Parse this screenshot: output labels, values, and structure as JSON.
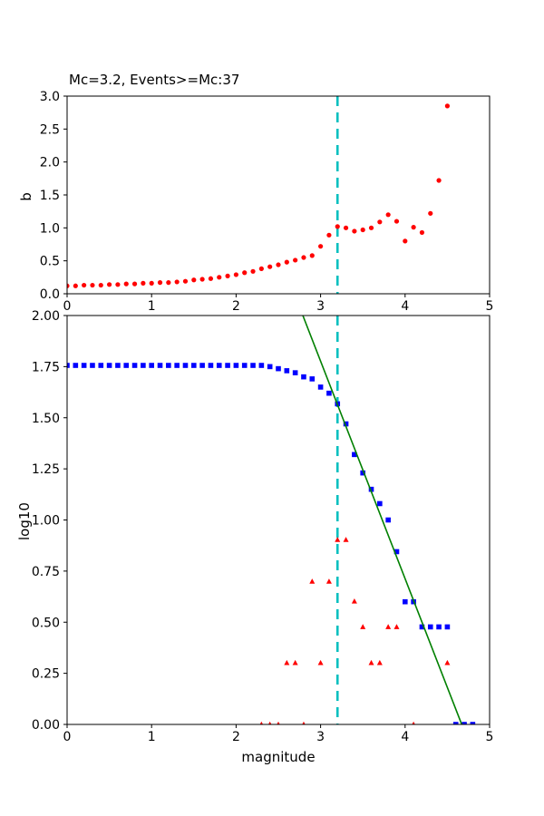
{
  "figure": {
    "background": "#ffffff",
    "title": "Mc=3.2, Events>=Mc:37"
  },
  "chart_data": [
    {
      "id": "b-value-stability",
      "type": "scatter",
      "title": "Mc=3.2, Events>=Mc:37",
      "xlabel": "",
      "ylabel": "b",
      "xlim": [
        0,
        5
      ],
      "ylim": [
        0,
        3
      ],
      "xticks": [
        0,
        1,
        2,
        3,
        4,
        5
      ],
      "xtick_labels": [
        "0",
        "1",
        "2",
        "3",
        "4",
        "5"
      ],
      "yticks": [
        0.0,
        0.5,
        1.0,
        1.5,
        2.0,
        2.5,
        3.0
      ],
      "ytick_labels": [
        "0.0",
        "0.5",
        "1.0",
        "1.5",
        "2.0",
        "2.5",
        "3.0"
      ],
      "grid": false,
      "legend": "none",
      "vline": {
        "x": 3.2,
        "color": "#00bfbf",
        "style": "dashed",
        "width": 2.6
      },
      "series": [
        {
          "name": "b-value-vs-cutoff-magnitude",
          "marker": "circle",
          "color": "#ff0000",
          "x": [
            0.0,
            0.1,
            0.2,
            0.3,
            0.4,
            0.5,
            0.6,
            0.7,
            0.8,
            0.9,
            1.0,
            1.1,
            1.2,
            1.3,
            1.4,
            1.5,
            1.6,
            1.7,
            1.8,
            1.9,
            2.0,
            2.1,
            2.2,
            2.3,
            2.4,
            2.5,
            2.6,
            2.7,
            2.8,
            2.9,
            3.0,
            3.1,
            3.2,
            3.3,
            3.4,
            3.5,
            3.6,
            3.7,
            3.8,
            3.9,
            4.0,
            4.1,
            4.2,
            4.3,
            4.4,
            4.5
          ],
          "y": [
            0.12,
            0.12,
            0.13,
            0.13,
            0.13,
            0.14,
            0.14,
            0.15,
            0.15,
            0.16,
            0.16,
            0.17,
            0.17,
            0.18,
            0.19,
            0.21,
            0.22,
            0.23,
            0.25,
            0.27,
            0.29,
            0.32,
            0.34,
            0.38,
            0.41,
            0.44,
            0.48,
            0.51,
            0.55,
            0.58,
            0.72,
            0.89,
            1.02,
            1.0,
            0.95,
            0.97,
            1.0,
            1.09,
            1.2,
            1.1,
            0.8,
            1.01,
            0.93,
            1.22,
            1.72,
            2.85
          ]
        }
      ]
    },
    {
      "id": "frequency-magnitude-distribution",
      "type": "scatter",
      "title": "",
      "xlabel": "magnitude",
      "ylabel": "log10",
      "xlim": [
        0,
        5
      ],
      "ylim": [
        0,
        2
      ],
      "xticks": [
        0,
        1,
        2,
        3,
        4,
        5
      ],
      "xtick_labels": [
        "0",
        "1",
        "2",
        "3",
        "4",
        "5"
      ],
      "yticks": [
        0.0,
        0.25,
        0.5,
        0.75,
        1.0,
        1.25,
        1.5,
        1.75,
        2.0
      ],
      "ytick_labels": [
        "0.00",
        "0.25",
        "0.50",
        "0.75",
        "1.00",
        "1.25",
        "1.50",
        "1.75",
        "2.00"
      ],
      "grid": false,
      "legend": "none",
      "vline": {
        "x": 3.2,
        "color": "#00bfbf",
        "style": "dashed",
        "width": 2.6
      },
      "series": [
        {
          "name": "cumulative-event-count-log10",
          "marker": "square",
          "color": "#0000ff",
          "x": [
            0.0,
            0.1,
            0.2,
            0.3,
            0.4,
            0.5,
            0.6,
            0.7,
            0.8,
            0.9,
            1.0,
            1.1,
            1.2,
            1.3,
            1.4,
            1.5,
            1.6,
            1.7,
            1.8,
            1.9,
            2.0,
            2.1,
            2.2,
            2.3,
            2.4,
            2.5,
            2.6,
            2.7,
            2.8,
            2.9,
            3.0,
            3.1,
            3.2,
            3.3,
            3.4,
            3.5,
            3.6,
            3.7,
            3.8,
            3.9,
            4.0,
            4.1,
            4.2,
            4.3,
            4.4,
            4.5,
            4.6,
            4.7,
            4.8
          ],
          "y": [
            1.756,
            1.756,
            1.756,
            1.756,
            1.756,
            1.756,
            1.756,
            1.756,
            1.756,
            1.756,
            1.756,
            1.756,
            1.756,
            1.756,
            1.756,
            1.756,
            1.756,
            1.756,
            1.756,
            1.756,
            1.756,
            1.756,
            1.756,
            1.756,
            1.75,
            1.74,
            1.73,
            1.72,
            1.7,
            1.69,
            1.65,
            1.62,
            1.568,
            1.47,
            1.32,
            1.23,
            1.15,
            1.08,
            1.0,
            0.845,
            0.6,
            0.6,
            0.477,
            0.477,
            0.477,
            0.477,
            0.0,
            0.0,
            0.0
          ]
        },
        {
          "name": "incremental-event-count-log10",
          "marker": "triangle",
          "color": "#ff0000",
          "x": [
            2.3,
            2.4,
            2.5,
            2.6,
            2.7,
            2.8,
            2.9,
            3.0,
            3.1,
            3.2,
            3.3,
            3.4,
            3.5,
            3.6,
            3.7,
            3.8,
            3.9,
            4.1,
            4.5
          ],
          "y": [
            0.0,
            0.0,
            0.0,
            0.301,
            0.301,
            0.0,
            0.699,
            0.301,
            0.699,
            0.903,
            0.903,
            0.602,
            0.477,
            0.301,
            0.301,
            0.477,
            0.477,
            0.0,
            0.301
          ]
        },
        {
          "name": "gutenberg-richter-fit-line",
          "marker": "line",
          "color": "#008000",
          "width": 1.6,
          "x": [
            2.79,
            4.67
          ],
          "y": [
            2.0,
            0.0
          ]
        }
      ]
    }
  ]
}
